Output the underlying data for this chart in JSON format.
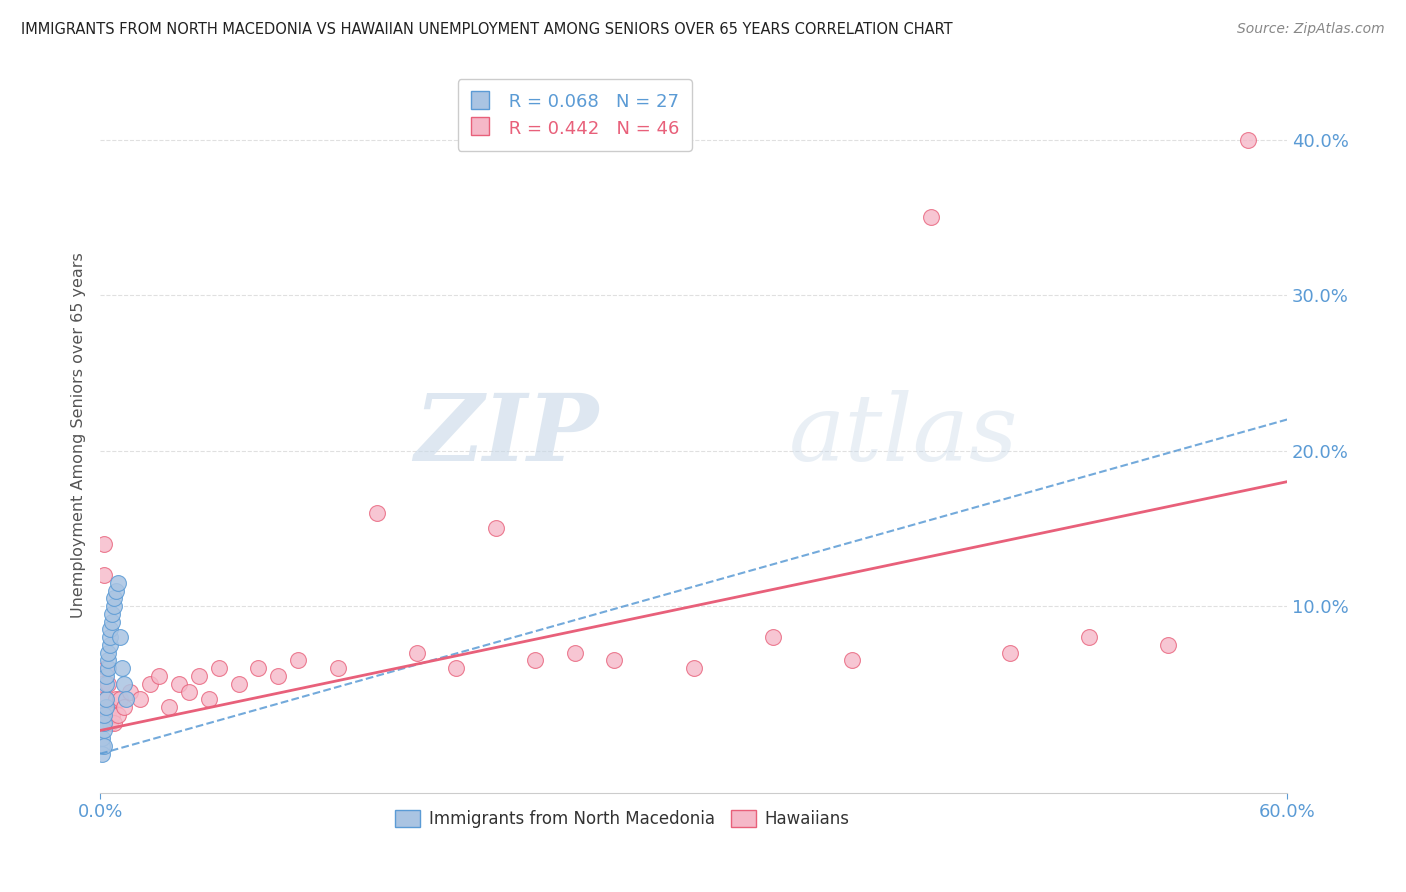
{
  "title": "IMMIGRANTS FROM NORTH MACEDONIA VS HAWAIIAN UNEMPLOYMENT AMONG SENIORS OVER 65 YEARS CORRELATION CHART",
  "source": "Source: ZipAtlas.com",
  "ylabel": "Unemployment Among Seniors over 65 years",
  "xlim": [
    0.0,
    0.6
  ],
  "ylim": [
    -0.02,
    0.44
  ],
  "legend_label1": "Immigrants from North Macedonia",
  "legend_label2": "Hawaiians",
  "R1": 0.068,
  "N1": 27,
  "R2": 0.442,
  "N2": 46,
  "color1": "#aac4e2",
  "color2": "#f5b8c8",
  "line_color1": "#5b9bd5",
  "line_color2": "#e8607a",
  "watermark_zip": "ZIP",
  "watermark_atlas": "atlas",
  "background_color": "#ffffff",
  "grid_color": "#e0e0e0",
  "blue_x": [
    0.001,
    0.001,
    0.001,
    0.002,
    0.002,
    0.002,
    0.002,
    0.003,
    0.003,
    0.003,
    0.003,
    0.004,
    0.004,
    0.004,
    0.005,
    0.005,
    0.005,
    0.006,
    0.006,
    0.007,
    0.007,
    0.008,
    0.009,
    0.01,
    0.011,
    0.012,
    0.013
  ],
  "blue_y": [
    0.01,
    0.015,
    0.005,
    0.02,
    0.025,
    0.03,
    0.01,
    0.035,
    0.04,
    0.05,
    0.055,
    0.06,
    0.065,
    0.07,
    0.075,
    0.08,
    0.085,
    0.09,
    0.095,
    0.1,
    0.105,
    0.11,
    0.115,
    0.08,
    0.06,
    0.05,
    0.04
  ],
  "pink_x": [
    0.001,
    0.001,
    0.002,
    0.002,
    0.003,
    0.003,
    0.004,
    0.004,
    0.005,
    0.005,
    0.006,
    0.007,
    0.008,
    0.009,
    0.01,
    0.012,
    0.015,
    0.02,
    0.025,
    0.03,
    0.035,
    0.04,
    0.045,
    0.05,
    0.055,
    0.06,
    0.07,
    0.08,
    0.09,
    0.1,
    0.12,
    0.14,
    0.16,
    0.18,
    0.2,
    0.22,
    0.24,
    0.26,
    0.3,
    0.34,
    0.38,
    0.42,
    0.46,
    0.5,
    0.54,
    0.58
  ],
  "pink_y": [
    0.05,
    0.03,
    0.12,
    0.14,
    0.04,
    0.06,
    0.03,
    0.05,
    0.025,
    0.035,
    0.03,
    0.025,
    0.04,
    0.03,
    0.04,
    0.035,
    0.045,
    0.04,
    0.05,
    0.055,
    0.035,
    0.05,
    0.045,
    0.055,
    0.04,
    0.06,
    0.05,
    0.06,
    0.055,
    0.065,
    0.06,
    0.16,
    0.07,
    0.06,
    0.15,
    0.065,
    0.07,
    0.065,
    0.06,
    0.08,
    0.065,
    0.35,
    0.07,
    0.08,
    0.075,
    0.4
  ],
  "blue_trend_x": [
    0.0,
    0.6
  ],
  "blue_trend_y": [
    0.005,
    0.22
  ],
  "pink_trend_x": [
    0.0,
    0.6
  ],
  "pink_trend_y": [
    0.02,
    0.18
  ]
}
